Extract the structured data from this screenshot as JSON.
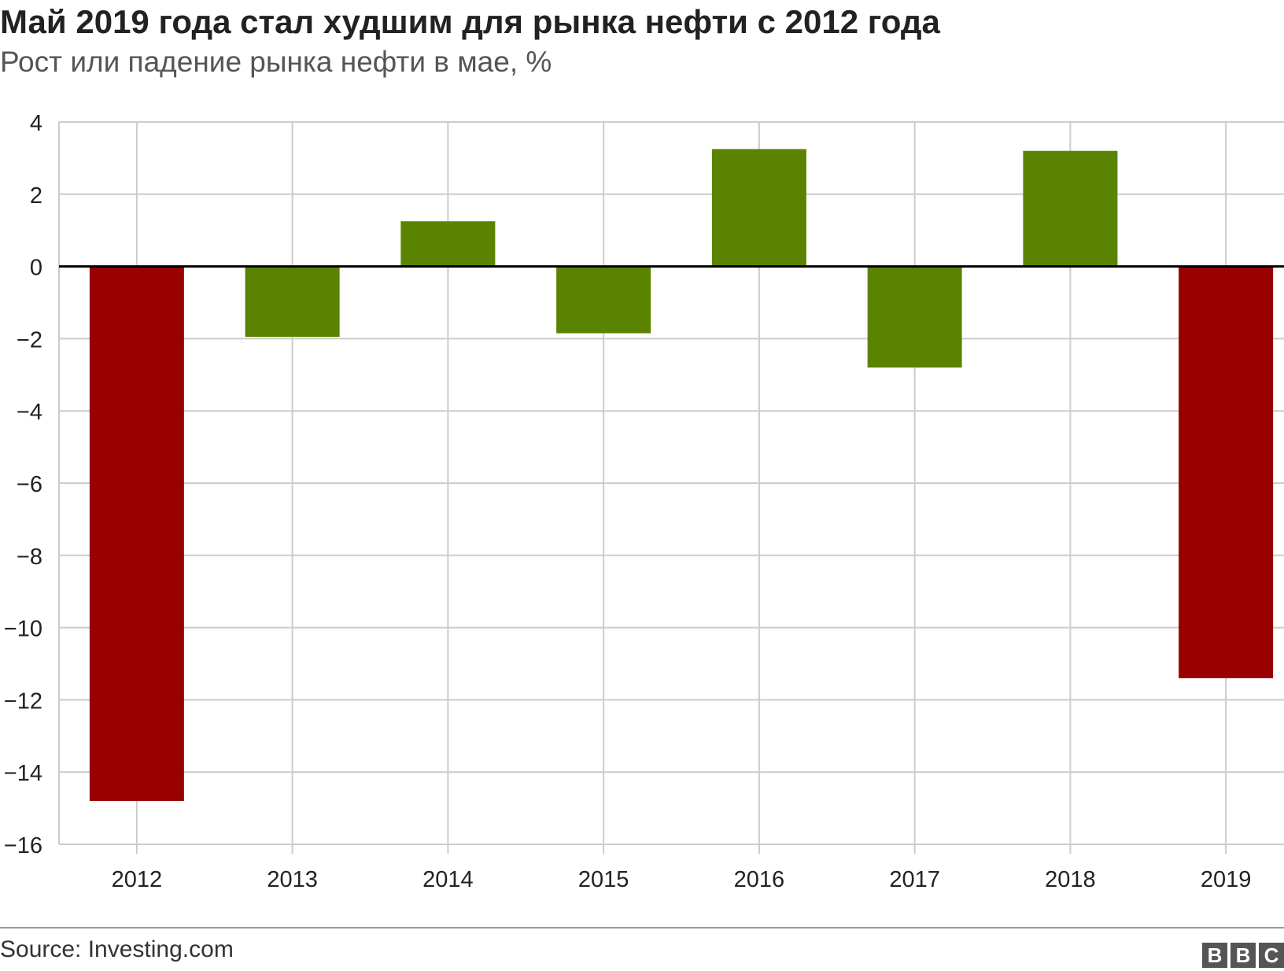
{
  "header": {
    "title": "Май 2019 года стал худшим для рынка нефти с 2012 года",
    "subtitle": "Рост или падение рынка нефти в мае, %"
  },
  "footer": {
    "source": "Source: Investing.com",
    "logo_letters": [
      "B",
      "B",
      "C"
    ]
  },
  "colors": {
    "positive_or_moderate": "#5a8400",
    "worst": "#990000",
    "gridline": "#cccccc",
    "zero_line": "#000000"
  },
  "chart_data": {
    "type": "bar",
    "title": "Май 2019 года стал худшим для рынка нефти с 2012 года",
    "subtitle": "Рост или падение рынка нефти в мае, %",
    "xlabel": "",
    "ylabel": "",
    "categories": [
      "2012",
      "2013",
      "2014",
      "2015",
      "2016",
      "2017",
      "2018",
      "2019"
    ],
    "values": [
      -14.8,
      -1.95,
      1.25,
      -1.85,
      3.25,
      -2.8,
      3.2,
      -11.4
    ],
    "bar_colors": [
      "#990000",
      "#5a8400",
      "#5a8400",
      "#5a8400",
      "#5a8400",
      "#5a8400",
      "#5a8400",
      "#990000"
    ],
    "ylim": [
      -16,
      4
    ],
    "yticks": [
      4,
      2,
      0,
      -2,
      -4,
      -6,
      -8,
      -10,
      -12,
      -14,
      -16
    ],
    "ytick_labels": [
      "4",
      "2",
      "0",
      "−2",
      "−4",
      "−6",
      "−8",
      "−10",
      "−12",
      "−14",
      "−16"
    ],
    "grid": true,
    "legend": "none"
  }
}
